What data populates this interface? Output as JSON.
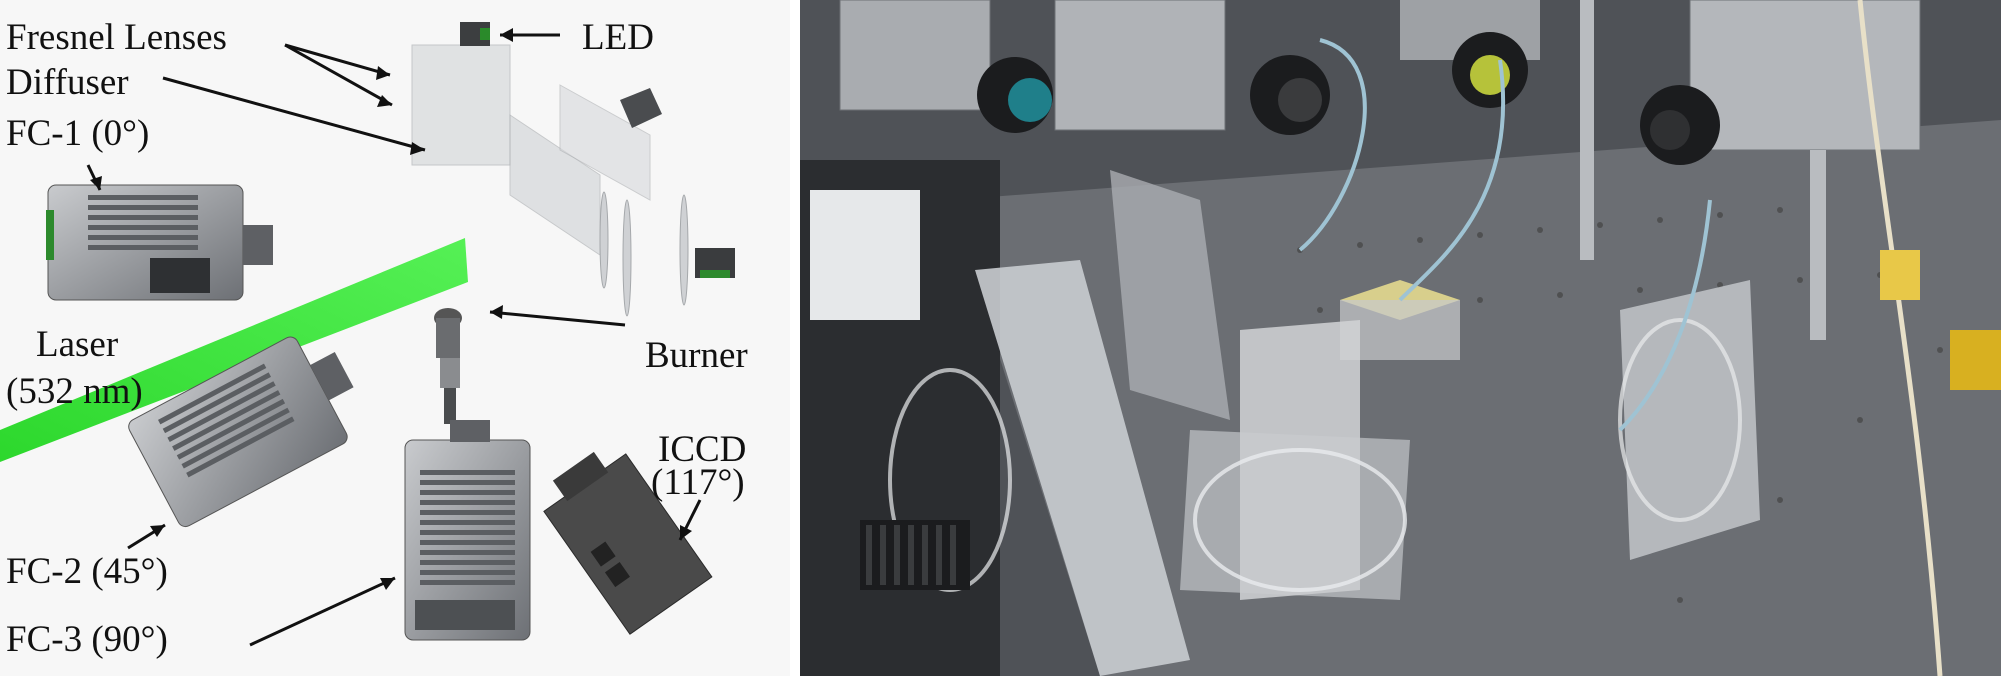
{
  "schematic": {
    "labels": {
      "fresnel_lenses": "Fresnel Lenses",
      "diffuser": "Diffuser",
      "fc1": "FC-1 (0°)",
      "led": "LED",
      "laser_line1": "Laser",
      "laser_line2": "(532 nm)",
      "burner": "Burner",
      "icdd_line1": "ICCD",
      "icdd_line2": "(117°)",
      "fc2": "FC-2 (45°)",
      "fc3": "FC-3 (90°)"
    },
    "colors": {
      "laser": "#3ee83e",
      "camera_body": "#8e9195",
      "camera_dark": "#3b3d40",
      "iccd_body": "#4a4a4a"
    }
  },
  "photo": {
    "description_colors": {
      "table": "#6c6f74",
      "camera_housing": "#a9acb0",
      "plate": "#c9ccd0"
    }
  }
}
